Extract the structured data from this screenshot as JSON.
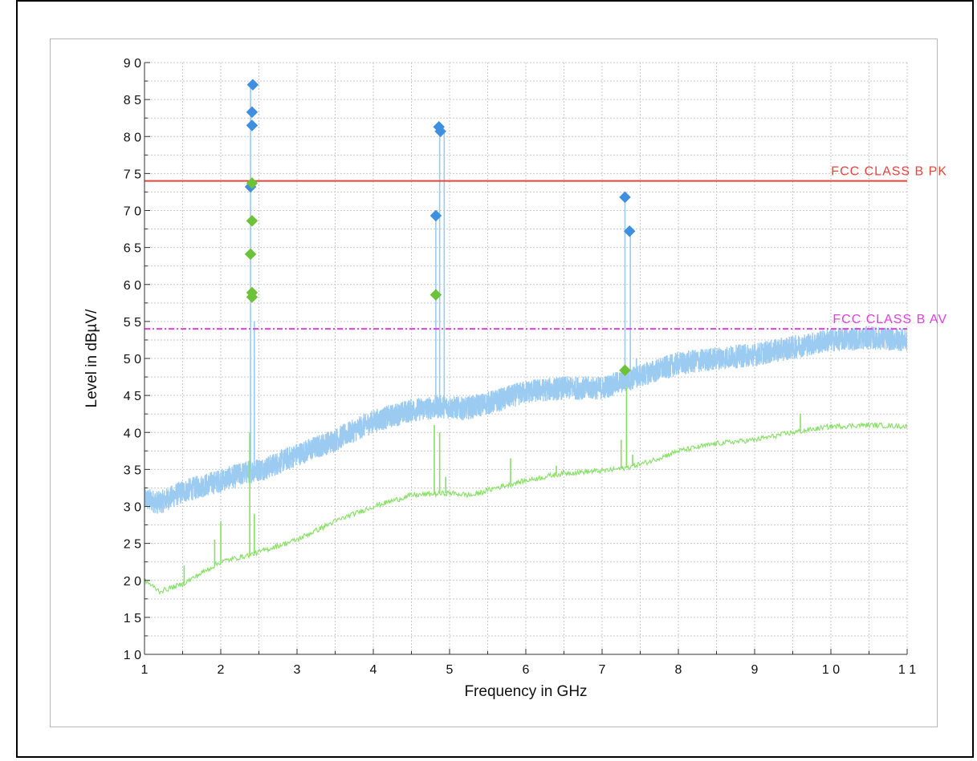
{
  "chart_data": {
    "type": "line",
    "xlabel": "Frequency in GHz",
    "ylabel": "Level in dBµV/",
    "xlim": [
      1,
      11
    ],
    "ylim": [
      10,
      90
    ],
    "x_ticks": [
      1,
      2,
      3,
      4,
      5,
      6,
      7,
      8,
      9,
      10,
      11
    ],
    "y_ticks": [
      10,
      15,
      20,
      25,
      30,
      35,
      40,
      45,
      50,
      55,
      60,
      65,
      70,
      75,
      80,
      85,
      90
    ],
    "x_tick_labels": [
      "1",
      "2",
      "3",
      "4",
      "5",
      "6",
      "7",
      "8",
      "9",
      "1 0",
      "1 1"
    ],
    "y_tick_labels": [
      "1 0",
      "1 5",
      "2 0",
      "2 5",
      "3 0",
      "3 5",
      "4 0",
      "4 5",
      "5 0",
      "5 5",
      "6 0",
      "6 5",
      "7 0",
      "7 5",
      "8 0",
      "8 5",
      "9 0"
    ],
    "grid": true,
    "limit_lines": [
      {
        "name": "FCC CLASS B PK",
        "value": 74,
        "color": "#e8453c",
        "style": "solid"
      },
      {
        "name": "FCC CLASS B AV",
        "value": 54,
        "color": "#e040e0",
        "style": "dashdot"
      }
    ],
    "series": [
      {
        "color": "#9ccbf2",
        "baseline": [
          [
            1.0,
            31.0
          ],
          [
            1.2,
            30.5
          ],
          [
            1.5,
            32.0
          ],
          [
            2.0,
            33.5
          ],
          [
            2.4,
            34.8
          ],
          [
            2.6,
            35.2
          ],
          [
            3.0,
            37.0
          ],
          [
            3.5,
            39.0
          ],
          [
            4.0,
            41.5
          ],
          [
            4.5,
            43.0
          ],
          [
            4.9,
            43.5
          ],
          [
            5.2,
            43.2
          ],
          [
            5.6,
            44.2
          ],
          [
            6.0,
            45.5
          ],
          [
            6.5,
            46.0
          ],
          [
            7.0,
            46.0
          ],
          [
            7.3,
            47.0
          ],
          [
            7.6,
            48.0
          ],
          [
            8.0,
            49.3
          ],
          [
            8.5,
            50.0
          ],
          [
            9.0,
            50.5
          ],
          [
            9.5,
            51.5
          ],
          [
            10.0,
            52.5
          ],
          [
            10.5,
            52.8
          ],
          [
            11.0,
            52.5
          ]
        ],
        "spikes": [
          [
            2.39,
            87
          ],
          [
            2.44,
            55
          ],
          [
            4.82,
            69
          ],
          [
            4.87,
            81.5
          ],
          [
            4.93,
            80.5
          ],
          [
            7.3,
            72
          ],
          [
            7.37,
            67
          ],
          [
            7.45,
            50
          ]
        ]
      },
      {
        "color": "#86e066",
        "baseline": [
          [
            1.0,
            20.0
          ],
          [
            1.2,
            18.5
          ],
          [
            1.5,
            19.5
          ],
          [
            2.0,
            22.5
          ],
          [
            2.4,
            23.5
          ],
          [
            2.7,
            24.5
          ],
          [
            3.0,
            25.5
          ],
          [
            3.5,
            28.0
          ],
          [
            4.0,
            30.0
          ],
          [
            4.5,
            31.5
          ],
          [
            5.0,
            31.8
          ],
          [
            5.3,
            31.5
          ],
          [
            5.6,
            32.5
          ],
          [
            6.0,
            33.5
          ],
          [
            6.5,
            34.5
          ],
          [
            7.0,
            34.8
          ],
          [
            7.3,
            35.2
          ],
          [
            7.6,
            36.0
          ],
          [
            8.0,
            37.5
          ],
          [
            8.5,
            38.5
          ],
          [
            9.0,
            39.0
          ],
          [
            9.5,
            40.0
          ],
          [
            10.0,
            40.8
          ],
          [
            10.5,
            41.0
          ],
          [
            11.0,
            40.8
          ]
        ],
        "spikes": [
          [
            1.52,
            22
          ],
          [
            1.92,
            25.5
          ],
          [
            2.0,
            28
          ],
          [
            2.38,
            40
          ],
          [
            2.44,
            29
          ],
          [
            4.8,
            41
          ],
          [
            4.87,
            40
          ],
          [
            4.95,
            34
          ],
          [
            5.8,
            36.5
          ],
          [
            6.4,
            35.5
          ],
          [
            7.25,
            39
          ],
          [
            7.32,
            46
          ],
          [
            7.4,
            37
          ],
          [
            9.6,
            42.5
          ]
        ]
      }
    ],
    "markers": [
      {
        "color": "#3f8fe0",
        "points": [
          [
            2.42,
            87.0
          ],
          [
            2.41,
            83.3
          ],
          [
            2.41,
            81.5
          ],
          [
            2.39,
            73.2
          ],
          [
            4.82,
            69.3
          ],
          [
            4.86,
            81.3
          ],
          [
            4.88,
            80.7
          ],
          [
            7.3,
            71.8
          ],
          [
            7.36,
            67.2
          ]
        ]
      },
      {
        "color": "#6cc238",
        "points": [
          [
            2.41,
            73.7
          ],
          [
            2.41,
            68.6
          ],
          [
            2.39,
            64.1
          ],
          [
            2.41,
            58.9
          ],
          [
            2.41,
            58.3
          ],
          [
            4.82,
            58.6
          ],
          [
            7.3,
            48.4
          ]
        ]
      }
    ]
  }
}
